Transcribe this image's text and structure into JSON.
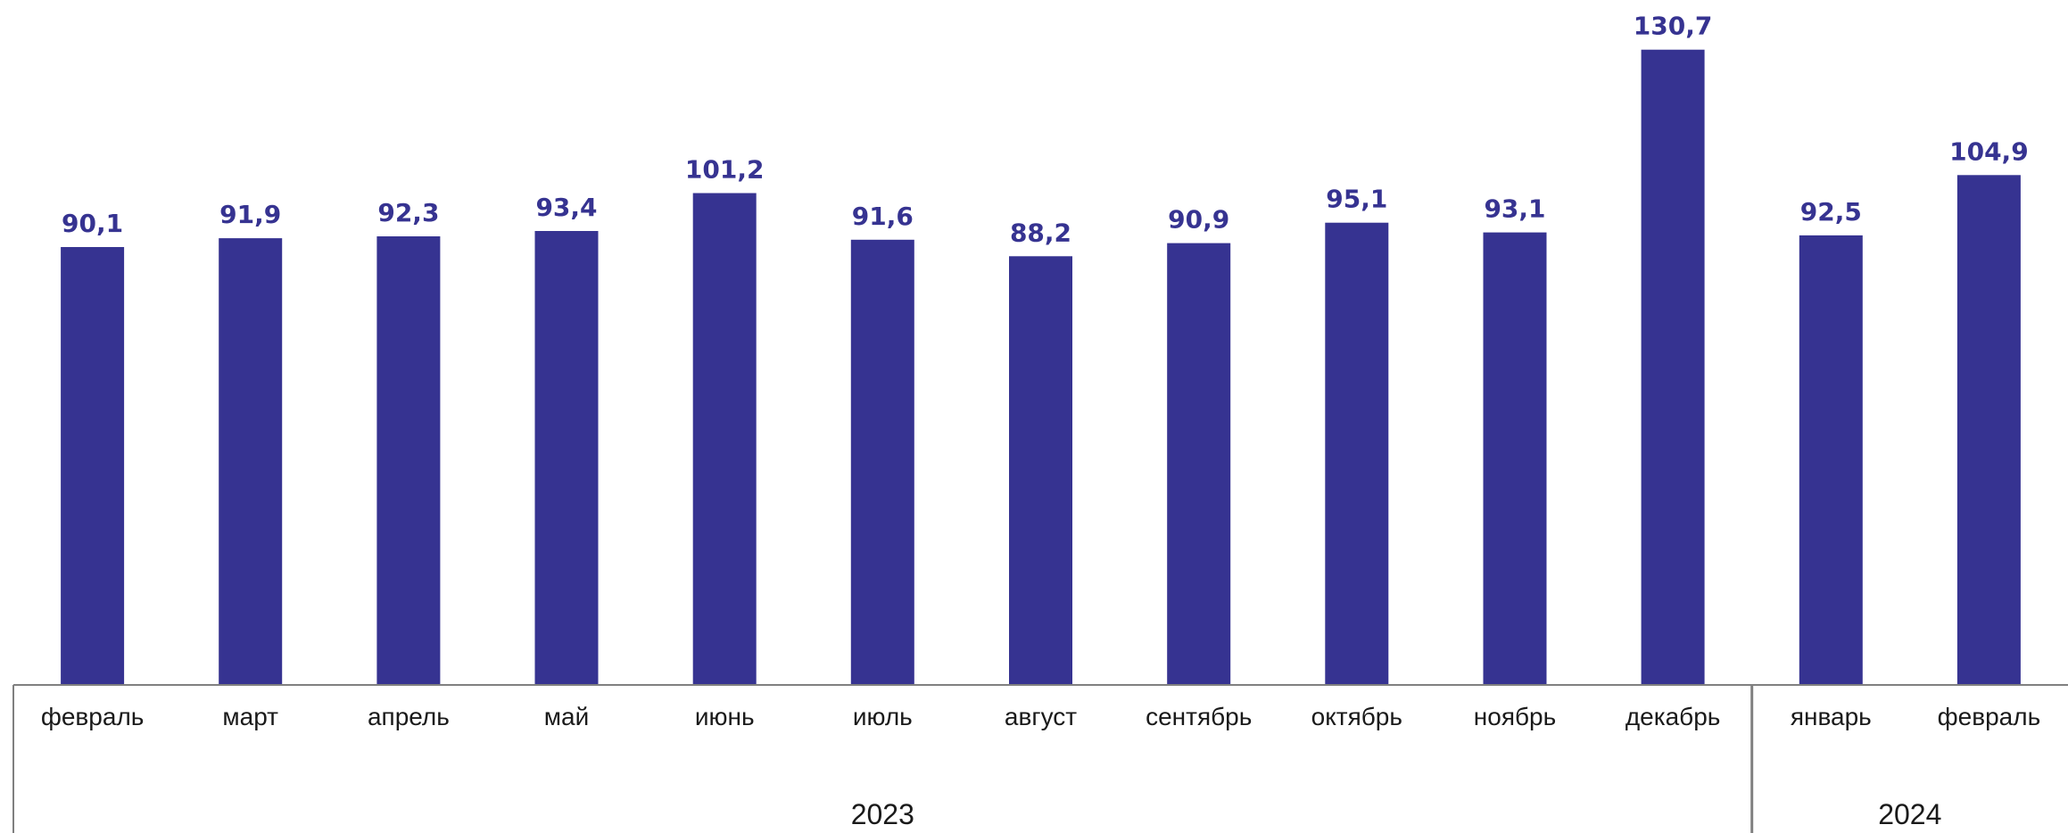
{
  "chart_data": {
    "type": "bar",
    "categories": [
      "февраль",
      "март",
      "апрель",
      "май",
      "июнь",
      "июль",
      "август",
      "сентябрь",
      "октябрь",
      "ноябрь",
      "декабрь",
      "январь",
      "февраль"
    ],
    "values": [
      90.1,
      91.9,
      92.3,
      93.4,
      101.2,
      91.6,
      88.2,
      90.9,
      95.1,
      93.1,
      130.7,
      92.5,
      104.9
    ],
    "value_labels": [
      "90,1",
      "91,9",
      "92,3",
      "93,4",
      "101,2",
      "91,6",
      "88,2",
      "90,9",
      "95,1",
      "93,1",
      "130,7",
      "92,5",
      "104,9"
    ],
    "year_groups": [
      {
        "label": "2023",
        "count": 11
      },
      {
        "label": "2024",
        "count": 2
      }
    ],
    "title": "",
    "xlabel": "",
    "ylabel": "",
    "ylim": [
      0,
      140
    ],
    "grid": false,
    "legend": "none",
    "bar_color": "#363391"
  }
}
